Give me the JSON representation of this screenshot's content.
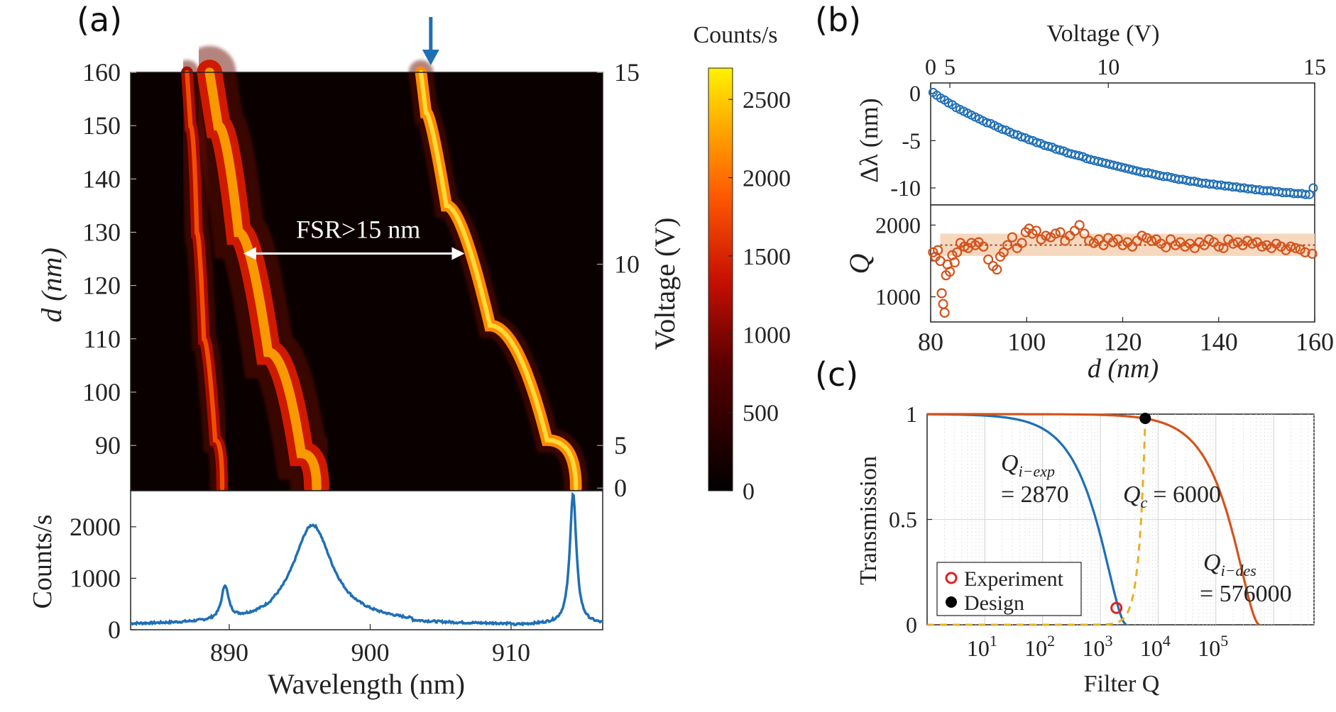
{
  "panel_labels": {
    "a": "(a)",
    "b": "(b)",
    "c": "(c)"
  },
  "colors": {
    "blue": "#1f6fb5",
    "orange": "#d4531c",
    "gold": "#e8b020",
    "red": "#e02020",
    "black": "#000000",
    "band": "#f6d8bf"
  },
  "chart_data": [
    {
      "id": "a-top",
      "type": "heatmap",
      "title": "",
      "ylabel": "d (nm)",
      "ylabel_right": "Voltage (V)",
      "xlim": [
        883,
        916.5
      ],
      "ylim": [
        81.5,
        160
      ],
      "yticks": [
        90,
        100,
        110,
        120,
        130,
        140,
        150,
        160
      ],
      "yticklabels": [
        "90",
        "100",
        "110",
        "120",
        "130",
        "140",
        "150",
        "160"
      ],
      "right_ticks": [
        {
          "d": 82,
          "label": "0"
        },
        {
          "d": 90,
          "label": "5"
        },
        {
          "d": 124,
          "label": "10"
        },
        {
          "d": 160,
          "label": "15"
        }
      ],
      "modes": [
        {
          "name": "mode-1",
          "points": [
            [
              889.5,
              82
            ],
            [
              888.5,
              100
            ],
            [
              887.9,
              120
            ],
            [
              887.5,
              140
            ],
            [
              887.0,
              160
            ]
          ],
          "peak": 0.55,
          "width": 0.35
        },
        {
          "name": "mode-2",
          "points": [
            [
              896.2,
              82
            ],
            [
              894.0,
              95
            ],
            [
              891.5,
              120
            ],
            [
              889.8,
              140
            ],
            [
              888.6,
              160
            ]
          ],
          "peak": 0.75,
          "width": 0.75
        },
        {
          "name": "mode-3",
          "points": [
            [
              914.6,
              82
            ],
            [
              910.5,
              100
            ],
            [
              906.5,
              125
            ],
            [
              904.3,
              145
            ],
            [
              903.6,
              160
            ]
          ],
          "peak": 1.0,
          "width": 0.35
        }
      ],
      "annotation": "FSR>15 nm",
      "annotation_arrow": {
        "x1": 891,
        "x2": 906.7,
        "y": 126
      },
      "top_arrow_x": 904.3,
      "colorbar": {
        "title": "Counts/s",
        "min": 0,
        "max": 2700,
        "ticks": [
          0,
          500,
          1000,
          1500,
          2000,
          2500
        ],
        "ticklabels": [
          "0",
          "500",
          "1000",
          "1500",
          "2000",
          "2500"
        ]
      }
    },
    {
      "id": "a-bottom",
      "type": "line",
      "xlabel": "Wavelength (nm)",
      "ylabel": "Counts/s",
      "xlim": [
        883,
        916.5
      ],
      "ylim": [
        0,
        2700
      ],
      "xticks": [
        890,
        900,
        910
      ],
      "xticklabels": [
        "890",
        "900",
        "910"
      ],
      "yticks": [
        0,
        1000,
        2000
      ],
      "yticklabels": [
        "0",
        "1000",
        "2000"
      ],
      "baseline": 90,
      "peaks": [
        {
          "center": 889.7,
          "height": 650,
          "width": 0.3
        },
        {
          "center": 895.9,
          "height": 1900,
          "width": 1.7
        },
        {
          "center": 914.4,
          "height": 2550,
          "width": 0.28
        }
      ]
    },
    {
      "id": "b-top",
      "type": "scatter",
      "xlabel_top": "Voltage (V)",
      "ylabel": "Δλ (nm)",
      "xlim": [
        80,
        160
      ],
      "ylim": [
        -11.8,
        1.1
      ],
      "yticks": [
        0,
        -5,
        -10
      ],
      "yticklabels": [
        "0",
        "-5",
        "-10"
      ],
      "top_ticks": [
        {
          "d": 80,
          "label": "0"
        },
        {
          "d": 84,
          "label": "5"
        },
        {
          "d": 117,
          "label": "10"
        },
        {
          "d": 160,
          "label": "15"
        }
      ],
      "x": [
        80.5,
        81.3,
        82.1,
        82.9,
        83.7,
        84.5,
        85.3,
        86.1,
        86.9,
        87.7,
        88.5,
        89.3,
        90.1,
        90.9,
        91.7,
        92.5,
        93.3,
        94.1,
        94.9,
        95.7,
        96.5,
        97.3,
        98.1,
        98.9,
        99.7,
        100.5,
        101.3,
        102.1,
        102.9,
        103.7,
        104.5,
        105.3,
        106.1,
        106.9,
        107.7,
        108.5,
        109.3,
        110.1,
        110.9,
        111.7,
        112.5,
        113.3,
        114.1,
        114.9,
        115.7,
        116.5,
        117.3,
        118.1,
        118.9,
        119.7,
        120.5,
        121.3,
        122.1,
        122.9,
        123.7,
        124.5,
        125.3,
        126.1,
        126.9,
        127.7,
        128.5,
        129.3,
        130.1,
        130.9,
        131.7,
        132.5,
        133.3,
        134.1,
        134.9,
        135.7,
        136.5,
        137.3,
        138.1,
        138.9,
        139.7,
        140.5,
        141.3,
        142.1,
        142.9,
        143.7,
        144.5,
        145.3,
        146.1,
        146.9,
        147.7,
        148.5,
        149.3,
        150.1,
        150.9,
        151.7,
        152.5,
        153.3,
        154.1,
        154.9,
        155.7,
        156.5,
        157.3,
        158.1,
        158.9,
        159.7
      ],
      "y": [
        0.1,
        -0.2,
        -0.5,
        -0.7,
        -1.0,
        -1.2,
        -1.5,
        -1.7,
        -1.9,
        -2.1,
        -2.3,
        -2.5,
        -2.7,
        -2.9,
        -3.1,
        -3.2,
        -3.4,
        -3.6,
        -3.8,
        -3.9,
        -4.1,
        -4.3,
        -4.4,
        -4.6,
        -4.7,
        -4.9,
        -5.0,
        -5.2,
        -5.3,
        -5.5,
        -5.6,
        -5.7,
        -5.9,
        -6.0,
        -6.1,
        -6.3,
        -6.4,
        -6.5,
        -6.6,
        -6.7,
        -6.9,
        -7.0,
        -7.1,
        -7.2,
        -7.3,
        -7.4,
        -7.5,
        -7.6,
        -7.7,
        -7.8,
        -7.9,
        -8.0,
        -8.1,
        -8.2,
        -8.3,
        -8.4,
        -8.4,
        -8.5,
        -8.6,
        -8.7,
        -8.8,
        -8.8,
        -8.9,
        -9.0,
        -9.1,
        -9.1,
        -9.2,
        -9.3,
        -9.3,
        -9.4,
        -9.5,
        -9.5,
        -9.6,
        -9.6,
        -9.7,
        -9.7,
        -9.8,
        -9.8,
        -9.9,
        -9.9,
        -10.0,
        -10.0,
        -10.1,
        -10.1,
        -10.2,
        -10.2,
        -10.3,
        -10.3,
        -10.3,
        -10.4,
        -10.4,
        -10.5,
        -10.5,
        -10.5,
        -10.6,
        -10.6,
        -10.6,
        -10.7,
        -10.7,
        -10.0
      ]
    },
    {
      "id": "b-bottom",
      "type": "scatter",
      "xlabel": "d (nm)",
      "ylabel": "Q",
      "xlim": [
        80,
        160
      ],
      "ylim": [
        650,
        2280
      ],
      "xticks": [
        80,
        100,
        120,
        140,
        160
      ],
      "xticklabels": [
        "80",
        "100",
        "120",
        "140",
        "160"
      ],
      "yticks": [
        1000,
        1500,
        2000
      ],
      "yticklabels": [
        "1000",
        "",
        "2000"
      ],
      "mean": 1720,
      "band": [
        1570,
        1880
      ],
      "x": [
        80.5,
        81.0,
        81.5,
        82.0,
        82.3,
        82.6,
        82.9,
        83.2,
        83.5,
        84.0,
        84.5,
        85.0,
        85.5,
        86.2,
        87.0,
        87.8,
        88.5,
        89.3,
        90.0,
        91.0,
        92.0,
        93.0,
        93.8,
        94.5,
        95.2,
        96.0,
        97.0,
        98.0,
        99.0,
        99.8,
        100.5,
        101.2,
        102.0,
        103.0,
        104.0,
        105.0,
        106.0,
        107.0,
        108.0,
        109.0,
        110.0,
        111.0,
        112.0,
        113.0,
        114.0,
        115.0,
        116.0,
        117.0,
        118.0,
        119.0,
        120.0,
        121.0,
        122.0,
        123.0,
        124.0,
        125.0,
        126.0,
        127.0,
        128.0,
        129.0,
        130.0,
        131.0,
        132.0,
        133.0,
        134.0,
        135.0,
        136.0,
        137.0,
        138.0,
        139.0,
        140.0,
        141.0,
        142.0,
        143.0,
        144.0,
        145.0,
        146.0,
        147.0,
        148.0,
        149.0,
        150.0,
        151.0,
        152.0,
        153.0,
        154.0,
        155.0,
        156.0,
        157.0,
        158.0,
        159.5
      ],
      "y": [
        1620,
        1560,
        1650,
        1500,
        1050,
        900,
        780,
        1300,
        1450,
        1350,
        1580,
        1480,
        1620,
        1750,
        1700,
        1680,
        1750,
        1720,
        1760,
        1700,
        1520,
        1430,
        1380,
        1560,
        1620,
        1720,
        1830,
        1680,
        1750,
        1900,
        1950,
        1880,
        1920,
        1800,
        1850,
        1830,
        1880,
        1900,
        1780,
        1850,
        1920,
        2000,
        1880,
        1780,
        1750,
        1800,
        1720,
        1820,
        1760,
        1800,
        1720,
        1760,
        1700,
        1780,
        1850,
        1820,
        1780,
        1800,
        1740,
        1690,
        1800,
        1720,
        1760,
        1700,
        1740,
        1680,
        1760,
        1720,
        1800,
        1760,
        1700,
        1680,
        1800,
        1740,
        1760,
        1720,
        1780,
        1740,
        1760,
        1700,
        1720,
        1680,
        1740,
        1700,
        1650,
        1700,
        1680,
        1660,
        1620,
        1600
      ]
    },
    {
      "id": "c",
      "type": "line",
      "xlabel": "Filter Q",
      "ylabel": "Transmission",
      "xlim_log10": [
        0,
        6.7
      ],
      "ylim": [
        0,
        1
      ],
      "xticks_log10": [
        1,
        2,
        3,
        4,
        5
      ],
      "xticklabels": [
        "10",
        "10",
        "10",
        "10",
        "10"
      ],
      "xtick_exponents": [
        "1",
        "2",
        "3",
        "4",
        "5"
      ],
      "yticks": [
        0,
        0.5,
        1
      ],
      "yticklabels": [
        "0",
        "0.5",
        "1"
      ],
      "series": [
        {
          "name": "Q_i-exp",
          "Qi": 2870,
          "style": "solid"
        },
        {
          "name": "Q_i-des",
          "Qi": 576000,
          "style": "solid"
        },
        {
          "name": "Q_c",
          "Qc": 6000,
          "style": "dashed"
        }
      ],
      "points": [
        {
          "name": "Experiment",
          "x": 1900,
          "y": 0.08
        },
        {
          "name": "Design",
          "x": 6000,
          "y": 0.98
        }
      ],
      "legend": [
        "Experiment",
        "Design"
      ],
      "legend_position": "lower-left",
      "annotations": {
        "qiexp_main": "Q",
        "qiexp_sub": "i−exp",
        "qiexp_value": "= 2870",
        "qc_main": "Q",
        "qc_sub": "c",
        "qc_value": "= 6000",
        "qides_main": "Q",
        "qides_sub": "i−des",
        "qides_value": "= 576000"
      }
    }
  ]
}
